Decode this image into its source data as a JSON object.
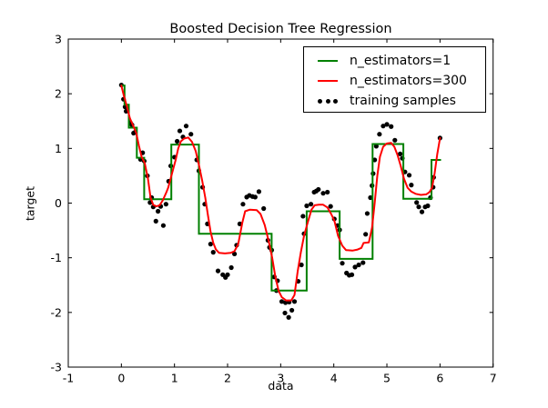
{
  "figure": {
    "title": "Boosted Decision Tree Regression",
    "xlabel": "data",
    "ylabel": "target"
  },
  "legend": {
    "position": "upper right",
    "items": [
      {
        "label": "n_estimators=1",
        "marker": "line",
        "color": "#008000"
      },
      {
        "label": "n_estimators=300",
        "marker": "line",
        "color": "#ff0000"
      },
      {
        "label": "training samples",
        "marker": "dots",
        "color": "#000000"
      }
    ]
  },
  "chart_data": {
    "type": "line+scatter",
    "title": "Boosted Decision Tree Regression",
    "xlabel": "data",
    "ylabel": "target",
    "xlim": [
      -1,
      7
    ],
    "ylim": [
      -3,
      3
    ],
    "grid": false,
    "legend_position": "upper right",
    "x_ticks": {
      "values": [
        -1,
        0,
        1,
        2,
        3,
        4,
        5,
        6,
        7
      ],
      "labels": [
        "-1",
        "0",
        "1",
        "2",
        "3",
        "4",
        "5",
        "6",
        "7"
      ]
    },
    "y_ticks": {
      "values": [
        -3,
        -2,
        -1,
        0,
        1,
        2,
        3
      ],
      "labels": [
        "-3",
        "-2",
        "-1",
        "0",
        "1",
        "2",
        "3"
      ]
    },
    "series": [
      {
        "name": "n_estimators=1",
        "type": "step",
        "color": "#008000",
        "linewidth": 2,
        "steps": [
          [
            0.0,
            0.06,
            2.15
          ],
          [
            0.06,
            0.14,
            1.8
          ],
          [
            0.14,
            0.29,
            1.38
          ],
          [
            0.29,
            0.43,
            0.83
          ],
          [
            0.43,
            0.94,
            0.07
          ],
          [
            0.94,
            1.46,
            1.07
          ],
          [
            1.46,
            2.83,
            -0.56
          ],
          [
            2.83,
            3.49,
            -1.6
          ],
          [
            3.49,
            4.11,
            -0.15
          ],
          [
            4.11,
            4.73,
            -1.02
          ],
          [
            4.73,
            5.31,
            1.08
          ],
          [
            5.31,
            5.84,
            0.08
          ],
          [
            5.84,
            6.02,
            0.79
          ]
        ]
      },
      {
        "name": "n_estimators=300",
        "type": "line",
        "color": "#ff0000",
        "linewidth": 2,
        "points": [
          [
            0,
            2.15
          ],
          [
            0.05,
            1.95
          ],
          [
            0.1,
            1.78
          ],
          [
            0.16,
            1.55
          ],
          [
            0.22,
            1.42
          ],
          [
            0.28,
            1.28
          ],
          [
            0.33,
            1.05
          ],
          [
            0.38,
            0.85
          ],
          [
            0.44,
            0.73
          ],
          [
            0.5,
            0.45
          ],
          [
            0.55,
            0.1
          ],
          [
            0.6,
            -0.03
          ],
          [
            0.66,
            -0.06
          ],
          [
            0.72,
            -0.04
          ],
          [
            0.78,
            0.05
          ],
          [
            0.84,
            0.18
          ],
          [
            0.88,
            0.28
          ],
          [
            0.92,
            0.42
          ],
          [
            0.97,
            0.6
          ],
          [
            1.02,
            0.78
          ],
          [
            1.07,
            1.0
          ],
          [
            1.12,
            1.13
          ],
          [
            1.18,
            1.18
          ],
          [
            1.26,
            1.2
          ],
          [
            1.33,
            1.12
          ],
          [
            1.4,
            0.95
          ],
          [
            1.46,
            0.7
          ],
          [
            1.52,
            0.42
          ],
          [
            1.58,
            0.1
          ],
          [
            1.63,
            -0.22
          ],
          [
            1.68,
            -0.52
          ],
          [
            1.73,
            -0.73
          ],
          [
            1.78,
            -0.85
          ],
          [
            1.84,
            -0.91
          ],
          [
            1.95,
            -0.92
          ],
          [
            2.06,
            -0.91
          ],
          [
            2.13,
            -0.88
          ],
          [
            2.2,
            -0.75
          ],
          [
            2.28,
            -0.35
          ],
          [
            2.33,
            -0.15
          ],
          [
            2.42,
            -0.12
          ],
          [
            2.55,
            -0.13
          ],
          [
            2.62,
            -0.2
          ],
          [
            2.7,
            -0.4
          ],
          [
            2.78,
            -0.72
          ],
          [
            2.84,
            -1.0
          ],
          [
            2.9,
            -1.35
          ],
          [
            2.96,
            -1.6
          ],
          [
            3.02,
            -1.72
          ],
          [
            3.1,
            -1.78
          ],
          [
            3.2,
            -1.78
          ],
          [
            3.26,
            -1.68
          ],
          [
            3.32,
            -1.25
          ],
          [
            3.38,
            -0.9
          ],
          [
            3.44,
            -0.6
          ],
          [
            3.51,
            -0.35
          ],
          [
            3.58,
            -0.12
          ],
          [
            3.64,
            -0.04
          ],
          [
            3.72,
            -0.03
          ],
          [
            3.8,
            -0.03
          ],
          [
            3.88,
            -0.08
          ],
          [
            3.95,
            -0.2
          ],
          [
            4.01,
            -0.32
          ],
          [
            4.08,
            -0.6
          ],
          [
            4.16,
            -0.78
          ],
          [
            4.23,
            -0.86
          ],
          [
            4.35,
            -0.87
          ],
          [
            4.45,
            -0.85
          ],
          [
            4.52,
            -0.82
          ],
          [
            4.56,
            -0.73
          ],
          [
            4.66,
            -0.72
          ],
          [
            4.72,
            -0.45
          ],
          [
            4.77,
            0.0
          ],
          [
            4.82,
            0.5
          ],
          [
            4.87,
            0.85
          ],
          [
            4.93,
            1.03
          ],
          [
            5.0,
            1.09
          ],
          [
            5.08,
            1.1
          ],
          [
            5.14,
            1.03
          ],
          [
            5.2,
            0.88
          ],
          [
            5.26,
            0.68
          ],
          [
            5.32,
            0.45
          ],
          [
            5.39,
            0.28
          ],
          [
            5.46,
            0.21
          ],
          [
            5.54,
            0.17
          ],
          [
            5.64,
            0.15
          ],
          [
            5.74,
            0.16
          ],
          [
            5.8,
            0.2
          ],
          [
            5.85,
            0.28
          ],
          [
            5.9,
            0.55
          ],
          [
            5.95,
            0.9
          ],
          [
            6.0,
            1.19
          ]
        ]
      },
      {
        "name": "training samples",
        "type": "scatter",
        "color": "#000000",
        "marker_size": 5,
        "points": [
          [
            0,
            2.16
          ],
          [
            0.04,
            1.9
          ],
          [
            0.07,
            1.76
          ],
          [
            0.09,
            1.68
          ],
          [
            0.17,
            1.47
          ],
          [
            0.2,
            1.43
          ],
          [
            0.23,
            1.28
          ],
          [
            0.26,
            1.3
          ],
          [
            0.36,
            0.8
          ],
          [
            0.4,
            0.92
          ],
          [
            0.43,
            0.77
          ],
          [
            0.49,
            0.5
          ],
          [
            0.54,
            0.01
          ],
          [
            0.57,
            0.1
          ],
          [
            0.6,
            -0.07
          ],
          [
            0.65,
            -0.33
          ],
          [
            0.69,
            -0.15
          ],
          [
            0.74,
            -0.06
          ],
          [
            0.79,
            -0.41
          ],
          [
            0.84,
            -0.02
          ],
          [
            0.89,
            0.4
          ],
          [
            0.93,
            0.68
          ],
          [
            1.0,
            0.84
          ],
          [
            1.05,
            1.13
          ],
          [
            1.1,
            1.32
          ],
          [
            1.16,
            1.21
          ],
          [
            1.22,
            1.41
          ],
          [
            1.31,
            1.26
          ],
          [
            1.42,
            0.79
          ],
          [
            1.46,
            0.59
          ],
          [
            1.53,
            0.29
          ],
          [
            1.57,
            -0.02
          ],
          [
            1.62,
            -0.38
          ],
          [
            1.68,
            -0.75
          ],
          [
            1.73,
            -0.9
          ],
          [
            1.82,
            -1.24
          ],
          [
            1.91,
            -1.31
          ],
          [
            1.96,
            -1.36
          ],
          [
            2.0,
            -1.31
          ],
          [
            2.07,
            -1.18
          ],
          [
            2.13,
            -0.93
          ],
          [
            2.17,
            -0.77
          ],
          [
            2.23,
            -0.38
          ],
          [
            2.29,
            -0.02
          ],
          [
            2.36,
            0.11
          ],
          [
            2.41,
            0.14
          ],
          [
            2.47,
            0.12
          ],
          [
            2.52,
            0.11
          ],
          [
            2.59,
            0.21
          ],
          [
            2.68,
            -0.1
          ],
          [
            2.76,
            -0.68
          ],
          [
            2.79,
            -0.81
          ],
          [
            2.83,
            -0.86
          ],
          [
            2.88,
            -1.35
          ],
          [
            2.92,
            -1.6
          ],
          [
            2.94,
            -1.42
          ],
          [
            3.02,
            -1.8
          ],
          [
            3.08,
            -2.01
          ],
          [
            3.09,
            -1.82
          ],
          [
            3.15,
            -2.09
          ],
          [
            3.16,
            -1.81
          ],
          [
            3.21,
            -1.96
          ],
          [
            3.26,
            -1.8
          ],
          [
            3.33,
            -1.43
          ],
          [
            3.39,
            -1.13
          ],
          [
            3.42,
            -0.24
          ],
          [
            3.44,
            -0.56
          ],
          [
            3.49,
            -0.05
          ],
          [
            3.57,
            -0.02
          ],
          [
            3.63,
            0.2
          ],
          [
            3.67,
            0.22
          ],
          [
            3.71,
            0.25
          ],
          [
            3.8,
            0.18
          ],
          [
            3.88,
            0.2
          ],
          [
            3.94,
            -0.06
          ],
          [
            4.01,
            -0.29
          ],
          [
            4.07,
            -0.41
          ],
          [
            4.11,
            -0.49
          ],
          [
            4.16,
            -1.1
          ],
          [
            4.24,
            -1.28
          ],
          [
            4.29,
            -1.32
          ],
          [
            4.34,
            -1.31
          ],
          [
            4.4,
            -1.17
          ],
          [
            4.47,
            -1.13
          ],
          [
            4.55,
            -1.09
          ],
          [
            4.6,
            -0.57
          ],
          [
            4.63,
            -0.19
          ],
          [
            4.69,
            0.1
          ],
          [
            4.72,
            0.32
          ],
          [
            4.74,
            0.54
          ],
          [
            4.77,
            0.79
          ],
          [
            4.8,
            1.04
          ],
          [
            4.86,
            1.26
          ],
          [
            4.93,
            1.41
          ],
          [
            5.0,
            1.44
          ],
          [
            5.08,
            1.4
          ],
          [
            5.15,
            1.15
          ],
          [
            5.25,
            0.9
          ],
          [
            5.29,
            0.82
          ],
          [
            5.34,
            0.57
          ],
          [
            5.42,
            0.51
          ],
          [
            5.46,
            0.33
          ],
          [
            5.56,
            0.01
          ],
          [
            5.6,
            -0.07
          ],
          [
            5.66,
            -0.16
          ],
          [
            5.72,
            -0.07
          ],
          [
            5.77,
            -0.05
          ],
          [
            5.82,
            0.1
          ],
          [
            5.87,
            0.29
          ],
          [
            5.88,
            0.47
          ],
          [
            6.0,
            1.19
          ]
        ]
      }
    ]
  }
}
